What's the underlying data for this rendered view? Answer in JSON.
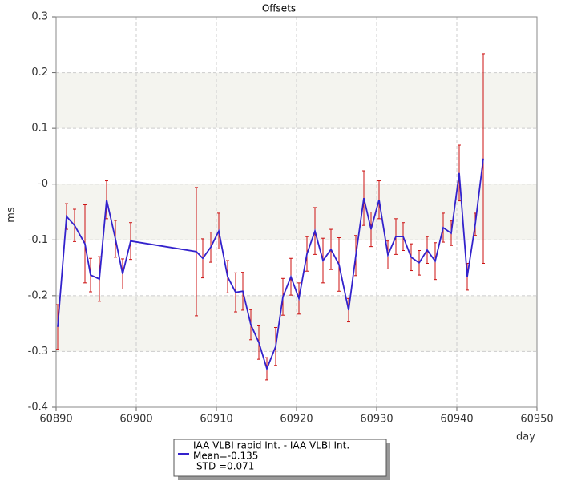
{
  "chart_data": {
    "type": "line",
    "title": "Offsets",
    "x_label": "day",
    "y_label": "ms",
    "x": [
      60890.2,
      60891.3,
      60892.3,
      60893.6,
      60894.3,
      60895.4,
      60896.3,
      60897.4,
      60898.3,
      60899.3,
      60907.5,
      60908.3,
      60909.3,
      60910.3,
      60911.4,
      60912.4,
      60913.3,
      60914.3,
      60915.3,
      60916.3,
      60917.4,
      60918.3,
      60919.3,
      60920.3,
      60921.3,
      60922.3,
      60923.3,
      60924.3,
      60925.3,
      60926.5,
      60927.4,
      60928.4,
      60929.3,
      60930.3,
      60931.4,
      60932.4,
      60933.3,
      60934.3,
      60935.3,
      60936.3,
      60937.3,
      60938.3,
      60939.3,
      60940.3,
      60941.3,
      60942.3,
      60943.3
    ],
    "series": [
      {
        "name": "IAA VLBI rapid Int. - IAA VLBI Int.",
        "color": "#3322cc",
        "error_color": "#cc1111",
        "values": [
          -0.256,
          -0.058,
          -0.074,
          -0.107,
          -0.163,
          -0.17,
          -0.028,
          -0.098,
          -0.161,
          -0.102,
          -0.121,
          -0.133,
          -0.113,
          -0.084,
          -0.166,
          -0.194,
          -0.192,
          -0.252,
          -0.284,
          -0.331,
          -0.291,
          -0.202,
          -0.166,
          -0.205,
          -0.125,
          -0.084,
          -0.137,
          -0.117,
          -0.144,
          -0.226,
          -0.128,
          -0.025,
          -0.081,
          -0.028,
          -0.127,
          -0.094,
          -0.094,
          -0.131,
          -0.141,
          -0.118,
          -0.138,
          -0.078,
          -0.088,
          0.02,
          -0.166,
          -0.072,
          0.046
        ],
        "errors": [
          0.04,
          0.023,
          0.029,
          0.07,
          0.03,
          0.04,
          0.034,
          0.033,
          0.027,
          0.033,
          0.115,
          0.035,
          0.027,
          0.032,
          0.029,
          0.035,
          0.034,
          0.027,
          0.03,
          0.02,
          0.034,
          0.033,
          0.033,
          0.028,
          0.031,
          0.042,
          0.04,
          0.036,
          0.048,
          0.021,
          0.036,
          0.049,
          0.031,
          0.034,
          0.025,
          0.032,
          0.025,
          0.024,
          0.022,
          0.024,
          0.033,
          0.026,
          0.022,
          0.05,
          0.024,
          0.02,
          0.188
        ]
      }
    ],
    "legend_stats": [
      "Mean=-0.135",
      "STD =0.071"
    ],
    "xlim": [
      60890,
      60950
    ],
    "xticks": [
      60890,
      60900,
      60910,
      60920,
      60930,
      60940,
      60950
    ],
    "ylim": [
      -0.4,
      0.3
    ],
    "yticks": [
      0.3,
      0.2,
      0.1,
      {
        "value": 0,
        "label": "-0"
      },
      -0.1,
      -0.2,
      -0.3,
      -0.4
    ],
    "grid": true
  }
}
